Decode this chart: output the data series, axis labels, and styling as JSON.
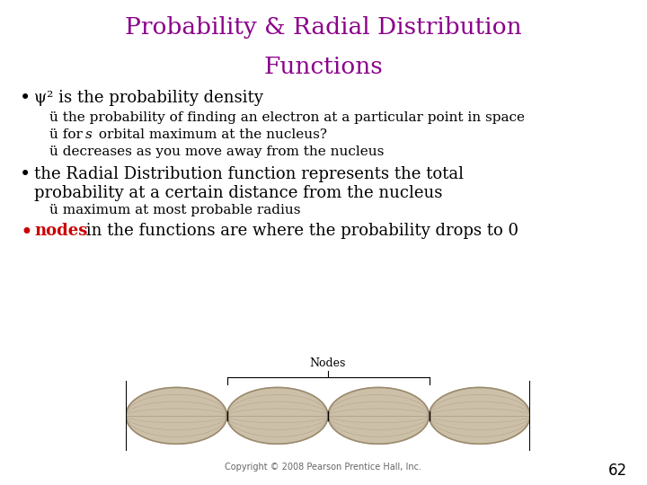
{
  "title_line1": "Probability & Radial Distribution",
  "title_line2": "Functions",
  "title_color": "#8B008B",
  "bg_color": "#FFFFFF",
  "bullet_color": "#000000",
  "red_color": "#CC0000",
  "page_number": "62",
  "copyright": "Copyright © 2008 Pearson Prentice Hall, Inc.",
  "bullet1_text": "ψ² is the probability density",
  "check1": "ü the probability of finding an electron at a particular point in space",
  "check2_a": "ü for ",
  "check2_b": "s",
  "check2_c": " orbital maximum at the nucleus?",
  "check3": "ü decreases as you move away from the nucleus",
  "bullet2_line1": "the Radial Distribution function represents the total",
  "bullet2_line2": "probability at a certain distance from the nucleus",
  "check4": "ü maximum at most probable radius",
  "bullet3_prefix": "nodes",
  "bullet3_suffix": " in the functions are where the probability drops to 0",
  "nodes_label": "Nodes",
  "title_fontsize": 19,
  "body_fontsize": 13,
  "small_fontsize": 11,
  "page_fontsize": 12,
  "lobe_color": "#C8BAA0",
  "lobe_edge": "#9B8B70"
}
